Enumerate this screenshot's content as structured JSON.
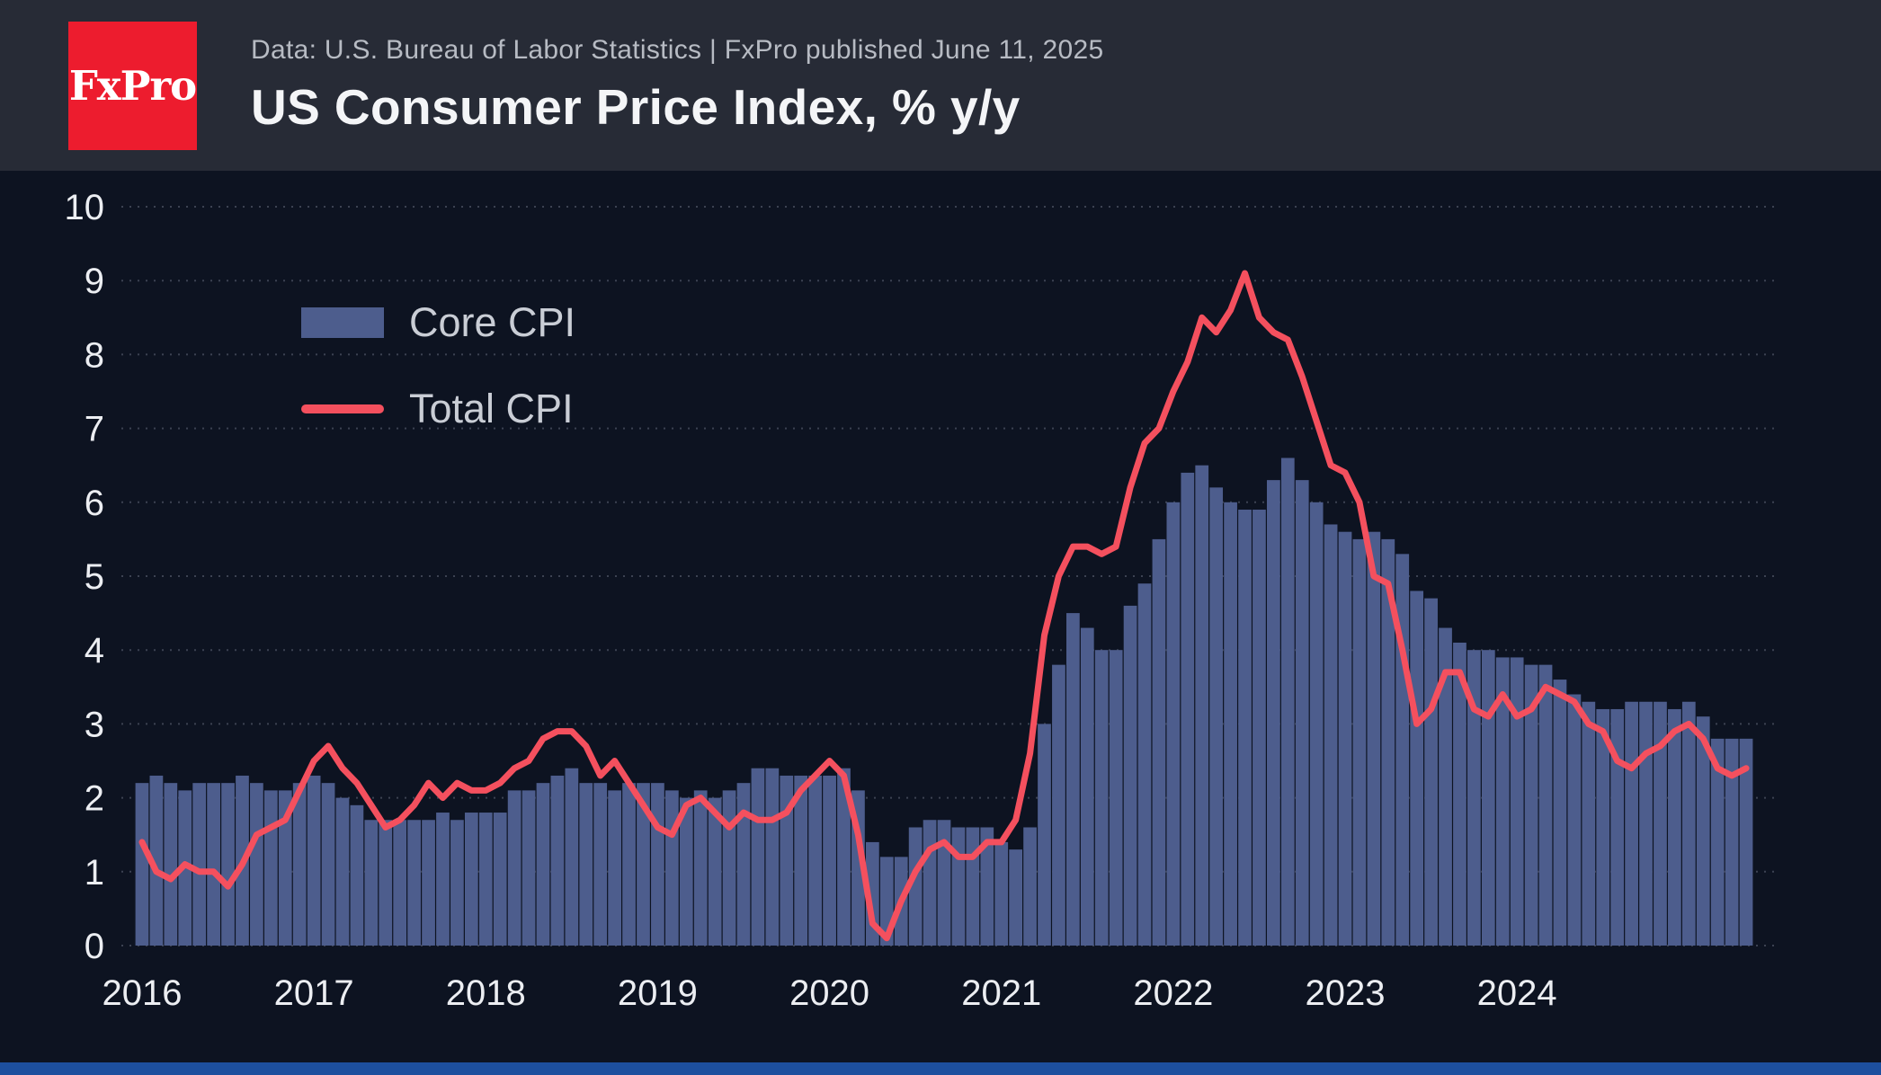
{
  "header": {
    "logo_text": "FxPro",
    "subtitle": "Data: U.S. Bureau of Labor Statistics | FxPro published June 11, 2025",
    "title": "US Consumer Price Index, % y/y"
  },
  "legend": {
    "core_label": "Core CPI",
    "total_label": "Total CPI"
  },
  "colors": {
    "background": "#0d1321",
    "header_background": "#272b36",
    "logo_background": "#ed1c2e",
    "core_cpi": "#4d5d8d",
    "total_cpi": "#f4505e",
    "grid": "#3c4252",
    "axis_text": "#eceef2",
    "title_text": "#f4f5f7",
    "subtitle_text": "#b7bbc3",
    "legend_text": "#c9cdd5",
    "footer_bar": "#1d4f9e"
  },
  "chart_data": {
    "type": "bar+line combo, monthly time series",
    "title": "US Consumer Price Index, % y/y",
    "x_start": "2016-01",
    "x_end": "2025-05",
    "x_tick_labels": [
      "2016",
      "2017",
      "2018",
      "2019",
      "2020",
      "2021",
      "2022",
      "2023",
      "2024"
    ],
    "y_ticks": [
      0,
      1,
      2,
      3,
      4,
      5,
      6,
      7,
      8,
      9,
      10
    ],
    "ylim": [
      0,
      10
    ],
    "grid": "dotted horizontal lines at each integer",
    "legend_position": "top-left inside plot",
    "series": [
      {
        "name": "Core CPI",
        "type": "bar",
        "color": "#4d5d8d",
        "values": [
          2.2,
          2.3,
          2.2,
          2.1,
          2.2,
          2.2,
          2.2,
          2.3,
          2.2,
          2.1,
          2.1,
          2.2,
          2.3,
          2.2,
          2.0,
          1.9,
          1.7,
          1.7,
          1.7,
          1.7,
          1.7,
          1.8,
          1.7,
          1.8,
          1.8,
          1.8,
          2.1,
          2.1,
          2.2,
          2.3,
          2.4,
          2.2,
          2.2,
          2.1,
          2.2,
          2.2,
          2.2,
          2.1,
          2.0,
          2.1,
          2.0,
          2.1,
          2.2,
          2.4,
          2.4,
          2.3,
          2.3,
          2.3,
          2.3,
          2.4,
          2.1,
          1.4,
          1.2,
          1.2,
          1.6,
          1.7,
          1.7,
          1.6,
          1.6,
          1.6,
          1.4,
          1.3,
          1.6,
          3.0,
          3.8,
          4.5,
          4.3,
          4.0,
          4.0,
          4.6,
          4.9,
          5.5,
          6.0,
          6.4,
          6.5,
          6.2,
          6.0,
          5.9,
          5.9,
          6.3,
          6.6,
          6.3,
          6.0,
          5.7,
          5.6,
          5.5,
          5.6,
          5.5,
          5.3,
          4.8,
          4.7,
          4.3,
          4.1,
          4.0,
          4.0,
          3.9,
          3.9,
          3.8,
          3.8,
          3.6,
          3.4,
          3.3,
          3.2,
          3.2,
          3.3,
          3.3,
          3.3,
          3.2,
          3.3,
          3.1,
          2.8,
          2.8,
          2.8
        ]
      },
      {
        "name": "Total CPI",
        "type": "line",
        "color": "#f4505e",
        "values": [
          1.4,
          1.0,
          0.9,
          1.1,
          1.0,
          1.0,
          0.8,
          1.1,
          1.5,
          1.6,
          1.7,
          2.1,
          2.5,
          2.7,
          2.4,
          2.2,
          1.9,
          1.6,
          1.7,
          1.9,
          2.2,
          2.0,
          2.2,
          2.1,
          2.1,
          2.2,
          2.4,
          2.5,
          2.8,
          2.9,
          2.9,
          2.7,
          2.3,
          2.5,
          2.2,
          1.9,
          1.6,
          1.5,
          1.9,
          2.0,
          1.8,
          1.6,
          1.8,
          1.7,
          1.7,
          1.8,
          2.1,
          2.3,
          2.5,
          2.3,
          1.5,
          0.3,
          0.1,
          0.6,
          1.0,
          1.3,
          1.4,
          1.2,
          1.2,
          1.4,
          1.4,
          1.7,
          2.6,
          4.2,
          5.0,
          5.4,
          5.4,
          5.3,
          5.4,
          6.2,
          6.8,
          7.0,
          7.5,
          7.9,
          8.5,
          8.3,
          8.6,
          9.1,
          8.5,
          8.3,
          8.2,
          7.7,
          7.1,
          6.5,
          6.4,
          6.0,
          5.0,
          4.9,
          4.0,
          3.0,
          3.2,
          3.7,
          3.7,
          3.2,
          3.1,
          3.4,
          3.1,
          3.2,
          3.5,
          3.4,
          3.3,
          3.0,
          2.9,
          2.5,
          2.4,
          2.6,
          2.7,
          2.9,
          3.0,
          2.8,
          2.4,
          2.3,
          2.4
        ]
      }
    ]
  }
}
